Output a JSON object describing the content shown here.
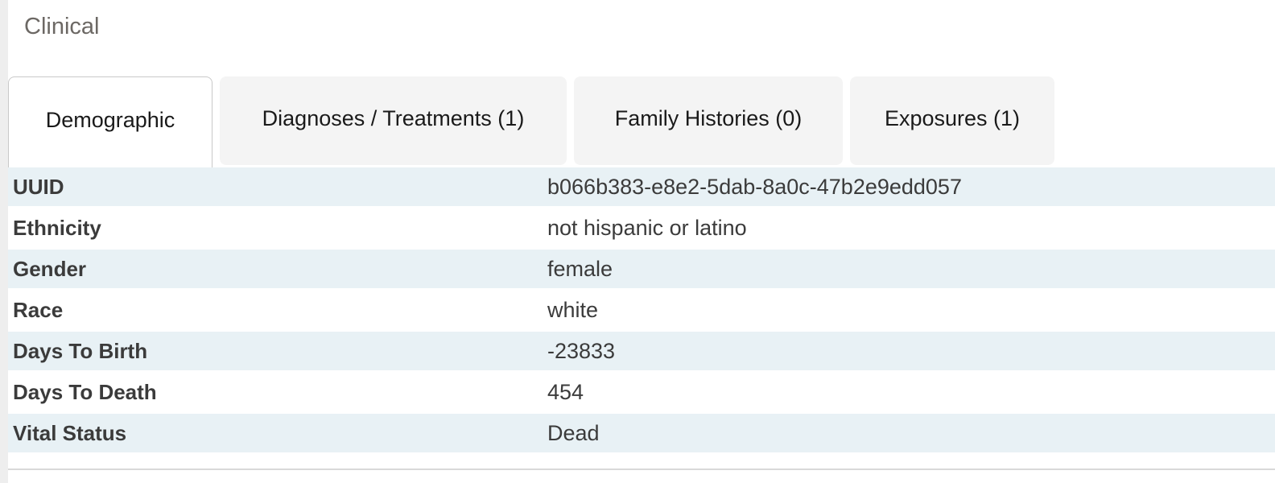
{
  "section": {
    "title": "Clinical"
  },
  "tabs": [
    {
      "label": "Demographic",
      "active": true
    },
    {
      "label": "Diagnoses / Treatments (1)",
      "active": false
    },
    {
      "label": "Family Histories (0)",
      "active": false
    },
    {
      "label": "Exposures (1)",
      "active": false
    }
  ],
  "table": {
    "rows": [
      {
        "label": "UUID",
        "value": "b066b383-e8e2-5dab-8a0c-47b2e9edd057"
      },
      {
        "label": "Ethnicity",
        "value": "not hispanic or latino"
      },
      {
        "label": "Gender",
        "value": "female"
      },
      {
        "label": "Race",
        "value": "white"
      },
      {
        "label": "Days To Birth",
        "value": "-23833"
      },
      {
        "label": "Days To Death",
        "value": "454"
      },
      {
        "label": "Vital Status",
        "value": "Dead"
      }
    ]
  },
  "colors": {
    "striped_row": "#e8f1f5",
    "inactive_tab": "#f4f4f4",
    "active_tab_border": "#c9c9c9",
    "title_text": "#6c6864",
    "body_text": "#3b3b3b",
    "divider": "#d9d9d9",
    "gutter": "#eeeeee"
  }
}
